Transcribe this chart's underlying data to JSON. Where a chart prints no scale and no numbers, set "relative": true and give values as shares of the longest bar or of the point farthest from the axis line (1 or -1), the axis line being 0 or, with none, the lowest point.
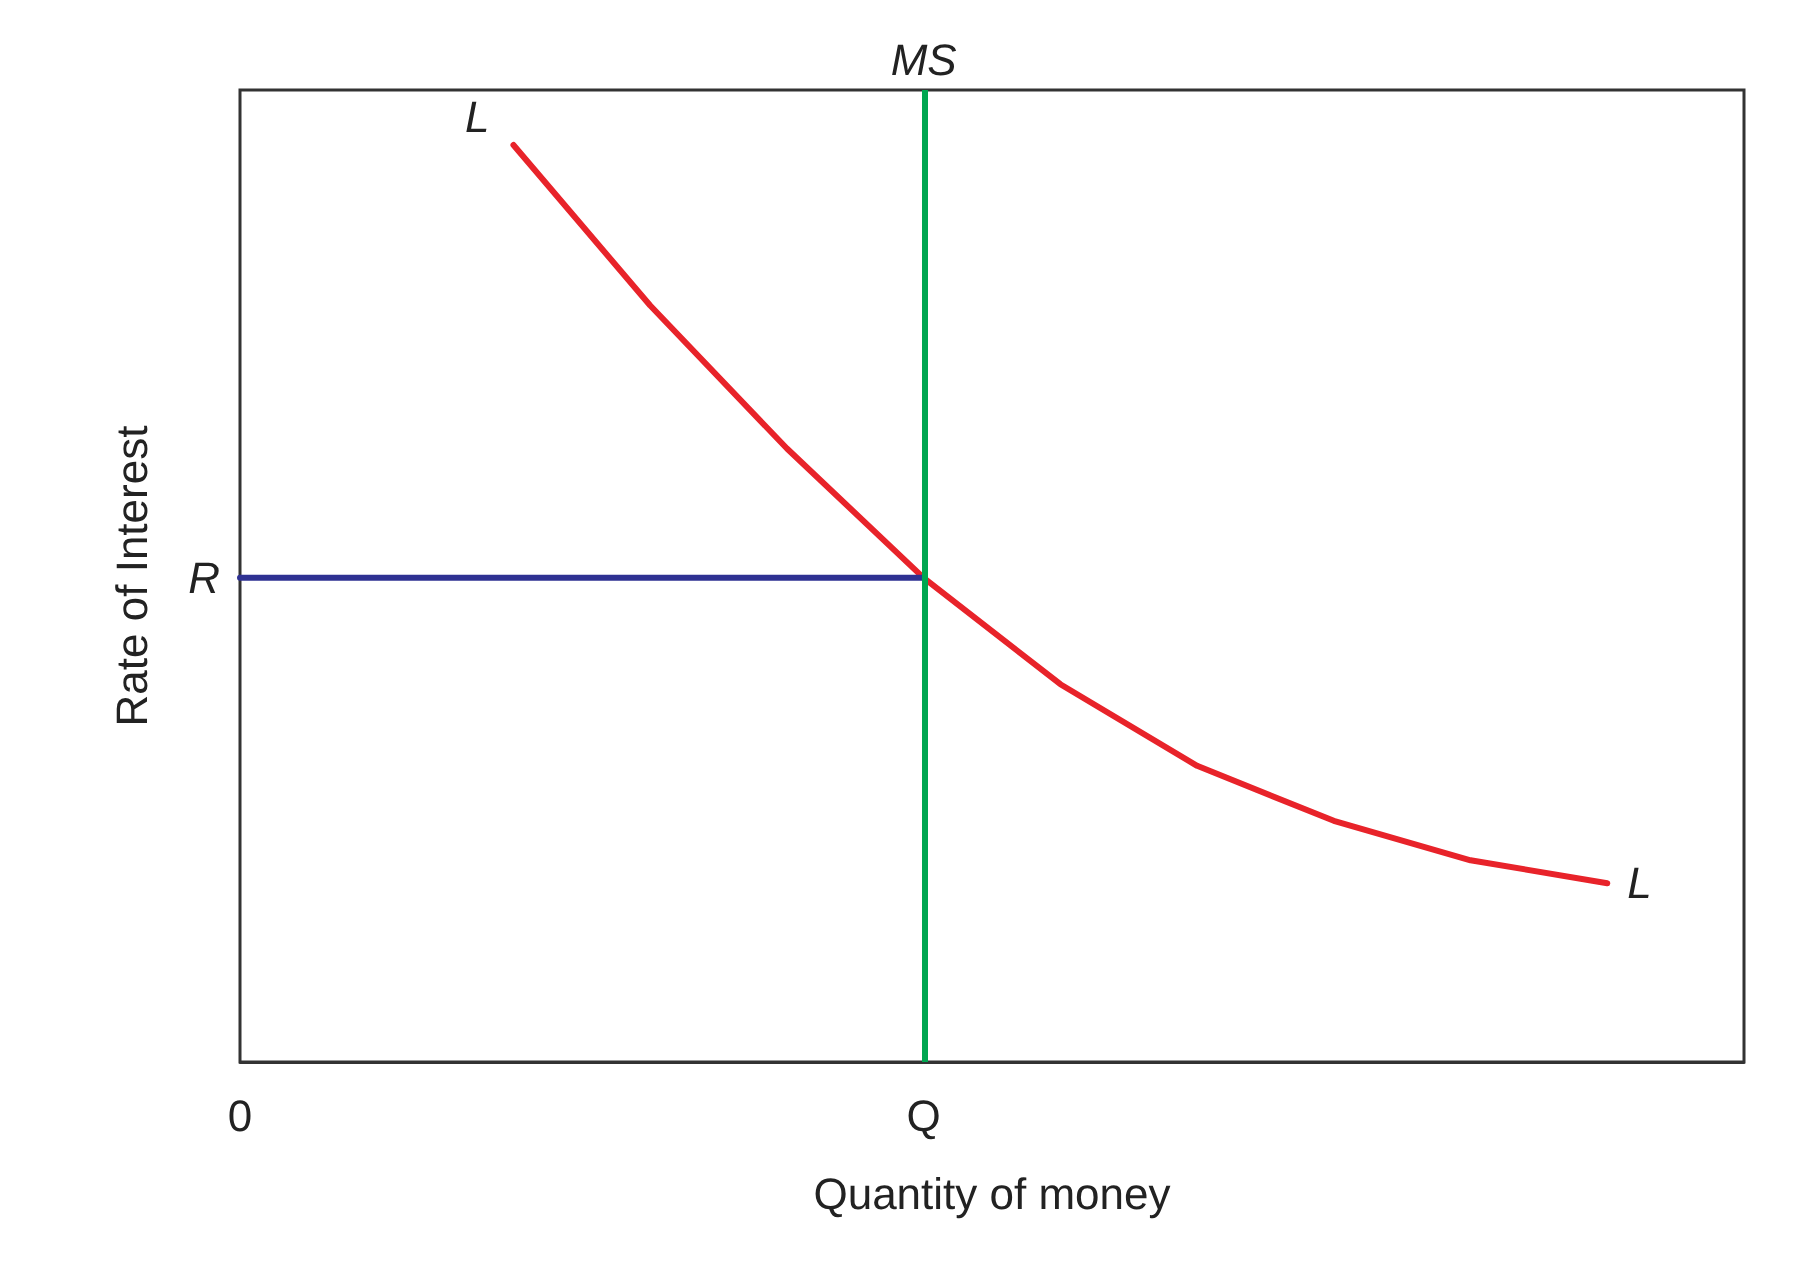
{
  "chart_data": {
    "type": "line",
    "relative": true,
    "xlabel": "Quantity of money",
    "ylabel": "Rate of Interest",
    "categories": [
      "0",
      null,
      null,
      null,
      null,
      "Q",
      null,
      null,
      null,
      null,
      null,
      null
    ],
    "marker": "none",
    "ref_lines": [
      {
        "axis": "x",
        "value": "Q",
        "label": "MS",
        "color": "#00a650"
      }
    ],
    "series": [
      {
        "name": "L",
        "color": "#e8232a",
        "values": [
          null,
          null,
          1,
          0.825,
          0.669,
          0.528,
          0.412,
          0.323,
          0.263,
          0.22,
          0.195,
          null
        ]
      },
      {
        "name": "R",
        "color": "#2e3192",
        "values": [
          0.528,
          0.528,
          0.528,
          0.528,
          0.528,
          0.528,
          null,
          null,
          null,
          null,
          null,
          null
        ]
      }
    ]
  }
}
